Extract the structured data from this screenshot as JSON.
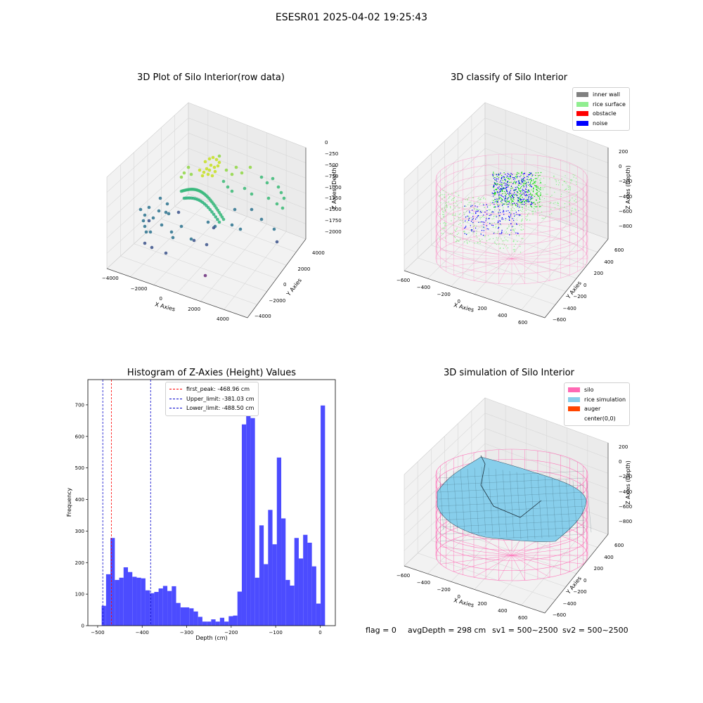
{
  "figure": {
    "suptitle": "ESESR01 2025-04-02 19:25:43",
    "footer": {
      "flag": "flag = 0",
      "avg_depth": "avgDepth = 298 cm",
      "sv1": "sv1 = 500~2500",
      "sv2": "sv2 = 500~2500"
    }
  },
  "colors": {
    "hist_bar": "#4c4cff",
    "peak_line": "#ff0000",
    "limit_line": "#0000cc",
    "inner_wall": "#808080",
    "rice_surface": "#90ee90",
    "obstacle": "#ff0000",
    "noise": "#0000ff",
    "silo": "#ff69b4",
    "rice_simulation": "#87ceeb",
    "auger": "#ff4500"
  },
  "plot1": {
    "title": "3D Plot of Silo Interior(row data)",
    "xlabel": "X Axies",
    "ylabel": "Y Axies",
    "zlabel": "Z Axies (Depth)",
    "xticks": [
      "−4000",
      "−2000",
      "0",
      "2000",
      "4000"
    ],
    "yticks": [
      "−4000",
      "−2000",
      "0",
      "2000",
      "4000"
    ],
    "zticks": [
      "0",
      "−250",
      "−500",
      "−750",
      "−1000",
      "−1250",
      "−1500",
      "−1750",
      "−2000"
    ]
  },
  "plot2": {
    "title": "3D classify of Silo Interior",
    "xlabel": "X Axies",
    "ylabel": "Y Axies",
    "zlabel": "Z Axies (Depth)",
    "xticks": [
      "−600",
      "−400",
      "−200",
      "0",
      "200",
      "400",
      "600"
    ],
    "yticks": [
      "−600",
      "−400",
      "−200",
      "0",
      "200",
      "400",
      "600"
    ],
    "zticks": [
      "200",
      "0",
      "−200",
      "−400",
      "−600",
      "−800"
    ],
    "legend": [
      {
        "label": "inner wall",
        "color": "#808080"
      },
      {
        "label": "rice surface",
        "color": "#90ee90"
      },
      {
        "label": "obstacle",
        "color": "#ff0000"
      },
      {
        "label": "noise",
        "color": "#0000ff"
      }
    ]
  },
  "plot4": {
    "title": "3D simulation of Silo Interior",
    "xlabel": "X Axies",
    "ylabel": "Y Axies",
    "zlabel": "Z Axies (Depth)",
    "xticks": [
      "−600",
      "−400",
      "−200",
      "0",
      "200",
      "400",
      "600"
    ],
    "yticks": [
      "−600",
      "−400",
      "−200",
      "0",
      "200",
      "400",
      "600"
    ],
    "zticks": [
      "200",
      "0",
      "−200",
      "−400",
      "−600",
      "−800"
    ],
    "legend": [
      {
        "label": "silo",
        "color": "#ff69b4"
      },
      {
        "label": "rice simulation",
        "color": "#87ceeb"
      },
      {
        "label": "auger",
        "color": "#ff4500"
      },
      {
        "label": "center(0,0)",
        "color": "none"
      }
    ]
  },
  "chart_data": {
    "type": "bar",
    "title": "Histogram of Z-Axies (Height) Values",
    "xlabel": "Depth (cm)",
    "ylabel": "Frequency",
    "xlim": [
      -522,
      34
    ],
    "ylim": [
      0,
      780
    ],
    "xticks": [
      -500,
      -400,
      -300,
      -200,
      -100,
      0
    ],
    "xtick_labels": [
      "−500",
      "−400",
      "−300",
      "−200",
      "−100",
      "0"
    ],
    "yticks": [
      0,
      100,
      200,
      300,
      400,
      500,
      600,
      700
    ],
    "bin_start": -491,
    "bin_width": 9.84,
    "values": [
      63,
      163,
      278,
      145,
      152,
      185,
      170,
      155,
      152,
      150,
      112,
      103,
      107,
      118,
      126,
      110,
      125,
      72,
      58,
      58,
      55,
      45,
      28,
      13,
      13,
      20,
      13,
      25,
      13,
      30,
      32,
      108,
      638,
      740,
      658,
      152,
      318,
      195,
      367,
      258,
      533,
      340,
      145,
      127,
      278,
      213,
      288,
      263,
      188,
      70,
      698
    ],
    "vlines": [
      {
        "x": -468.96,
        "label": "first_peak: -468.96 cm",
        "kind": "peak"
      },
      {
        "x": -381.03,
        "label": "Upper_limit: -381.03 cm",
        "kind": "limit"
      },
      {
        "x": -488.5,
        "label": "Lower_limit: -488.50 cm",
        "kind": "limit"
      }
    ],
    "legend_loc": "upper center"
  }
}
